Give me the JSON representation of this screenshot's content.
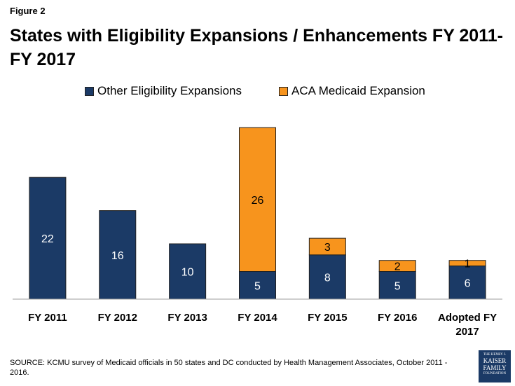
{
  "figure_label": "Figure 2",
  "title": "States with Eligibility Expansions / Enhancements FY 2011-FY 2017",
  "source": "SOURCE: KCMU survey of Medicaid officials in 50 states and DC conducted by Health Management Associates, October 2011 - 2016.",
  "logo": {
    "line1": "THE HENRY J.",
    "line2": "KAISER",
    "line3": "FAMILY",
    "line4": "FOUNDATION"
  },
  "colors": {
    "other": "#1b3a66",
    "aca": "#f7941d",
    "border": "#222222"
  },
  "chart_data": {
    "type": "bar",
    "stacked": true,
    "title": "States with Eligibility Expansions / Enhancements FY 2011-FY 2017",
    "categories": [
      "FY 2011",
      "FY 2012",
      "FY 2013",
      "FY 2014",
      "FY 2015",
      "FY 2016",
      "Adopted FY 2017"
    ],
    "series": [
      {
        "name": "Other Eligibility Expansions",
        "values": [
          22,
          16,
          10,
          5,
          8,
          5,
          6
        ]
      },
      {
        "name": "ACA Medicaid Expansion",
        "values": [
          0,
          0,
          0,
          26,
          3,
          2,
          1
        ]
      }
    ],
    "xlabel": "",
    "ylabel": "",
    "ylim": [
      0,
      31
    ],
    "legend": "top-center",
    "grid": false
  }
}
